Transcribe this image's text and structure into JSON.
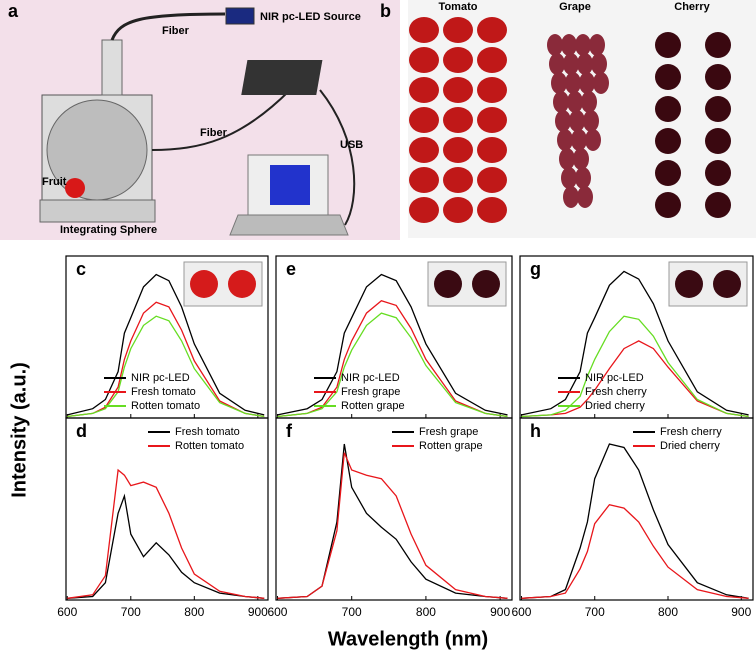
{
  "figure": {
    "ylabel": "Intensity (a.u.)",
    "xlabel": "Wavelength (nm)"
  },
  "panel_a": {
    "label": "a",
    "source": "NIR pc-LED Source",
    "fiber_top": "Fiber",
    "fiber_bottom": "Fiber",
    "usb": "USB",
    "fruit": "Fruit",
    "sphere": "Integrating Sphere"
  },
  "panel_b": {
    "label": "b",
    "columns": [
      "Tomato",
      "Grape",
      "Cherry"
    ]
  },
  "chart_data": [
    {
      "type": "line",
      "panel": "c",
      "x": [
        600,
        640,
        660,
        680,
        690,
        700,
        720,
        740,
        760,
        780,
        800,
        840,
        880,
        910
      ],
      "xlim": [
        598,
        916
      ],
      "xticks": [
        600,
        700,
        800,
        900
      ],
      "ylim": [
        0,
        1.05
      ],
      "legend": "lower right",
      "series": [
        {
          "name": "NIR pc-LED",
          "color": "#000000",
          "values": [
            0.02,
            0.06,
            0.12,
            0.3,
            0.55,
            0.65,
            0.85,
            0.93,
            0.89,
            0.72,
            0.48,
            0.16,
            0.05,
            0.02
          ]
        },
        {
          "name": "Fresh tomato",
          "color": "#e8161b",
          "values": [
            0.01,
            0.03,
            0.07,
            0.2,
            0.38,
            0.5,
            0.68,
            0.75,
            0.72,
            0.57,
            0.37,
            0.11,
            0.03,
            0.01
          ]
        },
        {
          "name": "Rotten tomato",
          "color": "#66dd22",
          "values": [
            0.01,
            0.03,
            0.06,
            0.17,
            0.33,
            0.45,
            0.6,
            0.66,
            0.63,
            0.5,
            0.32,
            0.1,
            0.03,
            0.01
          ]
        }
      ]
    },
    {
      "type": "line",
      "panel": "d",
      "x": [
        600,
        640,
        660,
        680,
        690,
        700,
        720,
        740,
        760,
        780,
        800,
        840,
        880,
        910
      ],
      "xlim": [
        598,
        916
      ],
      "xticks": [
        600,
        700,
        800,
        900
      ],
      "ylim": [
        0,
        1.05
      ],
      "legend": "upper right",
      "series": [
        {
          "name": "Fresh tomato",
          "color": "#000000",
          "values": [
            0.01,
            0.02,
            0.1,
            0.5,
            0.6,
            0.38,
            0.25,
            0.33,
            0.26,
            0.16,
            0.1,
            0.04,
            0.02,
            0.01
          ]
        },
        {
          "name": "Rotten tomato",
          "color": "#e8161b",
          "values": [
            0.01,
            0.03,
            0.14,
            0.75,
            0.72,
            0.66,
            0.68,
            0.65,
            0.5,
            0.3,
            0.15,
            0.05,
            0.02,
            0.01
          ]
        }
      ]
    },
    {
      "type": "line",
      "panel": "e",
      "x": [
        600,
        640,
        660,
        680,
        690,
        700,
        720,
        740,
        760,
        780,
        800,
        840,
        880,
        910
      ],
      "xlim": [
        598,
        916
      ],
      "xticks": [
        600,
        700,
        800,
        900
      ],
      "ylim": [
        0,
        1.05
      ],
      "legend": "lower right",
      "series": [
        {
          "name": "NIR pc-LED",
          "color": "#000000",
          "values": [
            0.02,
            0.06,
            0.12,
            0.3,
            0.55,
            0.65,
            0.85,
            0.93,
            0.89,
            0.72,
            0.48,
            0.16,
            0.05,
            0.02
          ]
        },
        {
          "name": "Fresh grape",
          "color": "#e8161b",
          "values": [
            0.01,
            0.03,
            0.07,
            0.2,
            0.38,
            0.5,
            0.68,
            0.76,
            0.73,
            0.58,
            0.38,
            0.11,
            0.03,
            0.01
          ]
        },
        {
          "name": "Rotten grape",
          "color": "#66dd22",
          "values": [
            0.01,
            0.03,
            0.06,
            0.17,
            0.33,
            0.44,
            0.6,
            0.68,
            0.65,
            0.52,
            0.34,
            0.1,
            0.03,
            0.01
          ]
        }
      ]
    },
    {
      "type": "line",
      "panel": "f",
      "x": [
        600,
        640,
        660,
        680,
        690,
        700,
        720,
        740,
        760,
        780,
        800,
        840,
        880,
        910
      ],
      "xlim": [
        598,
        916
      ],
      "xticks": [
        600,
        700,
        800,
        900
      ],
      "ylim": [
        0,
        1.05
      ],
      "legend": "upper right",
      "series": [
        {
          "name": "Fresh grape",
          "color": "#000000",
          "values": [
            0.01,
            0.02,
            0.08,
            0.45,
            0.9,
            0.65,
            0.5,
            0.42,
            0.35,
            0.22,
            0.12,
            0.04,
            0.02,
            0.01
          ]
        },
        {
          "name": "Rotten grape",
          "color": "#e8161b",
          "values": [
            0.01,
            0.02,
            0.08,
            0.4,
            0.85,
            0.75,
            0.72,
            0.7,
            0.6,
            0.38,
            0.2,
            0.06,
            0.02,
            0.01
          ]
        }
      ]
    },
    {
      "type": "line",
      "panel": "g",
      "x": [
        600,
        640,
        660,
        680,
        690,
        700,
        720,
        740,
        760,
        780,
        800,
        840,
        880,
        910
      ],
      "xlim": [
        598,
        916
      ],
      "xticks": [
        600,
        700,
        800,
        900
      ],
      "ylim": [
        0,
        1.05
      ],
      "legend": "lower right",
      "series": [
        {
          "name": "NIR pc-LED",
          "color": "#000000",
          "values": [
            0.02,
            0.06,
            0.12,
            0.3,
            0.55,
            0.65,
            0.86,
            0.95,
            0.9,
            0.74,
            0.5,
            0.17,
            0.05,
            0.02
          ]
        },
        {
          "name": "Fresh cherry",
          "color": "#e8161b",
          "values": [
            0.01,
            0.02,
            0.03,
            0.07,
            0.12,
            0.18,
            0.32,
            0.45,
            0.5,
            0.45,
            0.33,
            0.11,
            0.03,
            0.01
          ]
        },
        {
          "name": "Dried cherry",
          "color": "#66dd22",
          "values": [
            0.01,
            0.02,
            0.05,
            0.14,
            0.27,
            0.38,
            0.56,
            0.66,
            0.64,
            0.53,
            0.36,
            0.12,
            0.03,
            0.01
          ]
        }
      ]
    },
    {
      "type": "line",
      "panel": "h",
      "x": [
        600,
        640,
        660,
        680,
        690,
        700,
        720,
        740,
        760,
        780,
        800,
        840,
        880,
        910
      ],
      "xlim": [
        598,
        916
      ],
      "xticks": [
        600,
        700,
        800,
        900
      ],
      "ylim": [
        0,
        1.05
      ],
      "legend": "upper right",
      "series": [
        {
          "name": "Fresh cherry",
          "color": "#000000",
          "values": [
            0.01,
            0.02,
            0.06,
            0.3,
            0.45,
            0.7,
            0.9,
            0.88,
            0.75,
            0.52,
            0.32,
            0.1,
            0.03,
            0.01
          ]
        },
        {
          "name": "Dried cherry",
          "color": "#e8161b",
          "values": [
            0.01,
            0.02,
            0.04,
            0.18,
            0.28,
            0.44,
            0.55,
            0.53,
            0.45,
            0.31,
            0.19,
            0.06,
            0.02,
            0.01
          ]
        }
      ]
    }
  ]
}
